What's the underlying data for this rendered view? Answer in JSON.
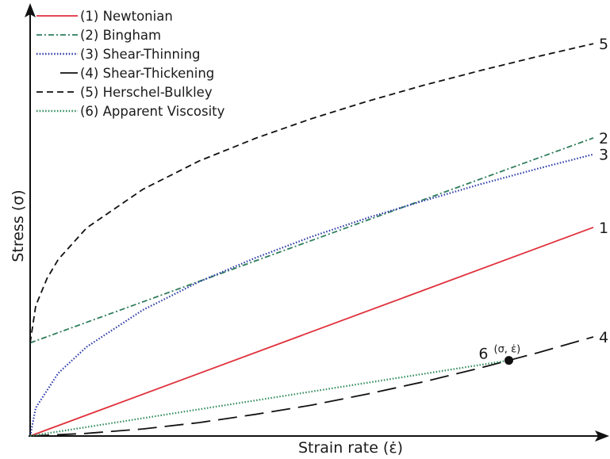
{
  "chart_data": {
    "type": "line",
    "xlabel": "Strain rate (ε̇)",
    "ylabel": "Stress (σ)",
    "xlim": [
      0,
      1
    ],
    "ylim": [
      0,
      1
    ],
    "grid": false,
    "legend_position": "top-left",
    "series": [
      {
        "id": "newtonian",
        "name": "(1) Newtonian",
        "end_label": "1",
        "color": "#e0313b",
        "dash": "solid",
        "x": [
          0,
          1
        ],
        "y": [
          0,
          0.56
        ]
      },
      {
        "id": "bingham",
        "name": "(2) Bingham",
        "end_label": "2",
        "color": "#2e7d5b",
        "dash": "dashdot",
        "x": [
          0,
          1
        ],
        "y": [
          0.25,
          0.8
        ]
      },
      {
        "id": "shear-thinning",
        "name": "(3) Shear-Thinning",
        "end_label": "3",
        "color": "#2b3aa8",
        "dash": "dotted",
        "x": [
          0,
          0.01,
          0.05,
          0.1,
          0.2,
          0.3,
          0.4,
          0.5,
          0.6,
          0.7,
          0.8,
          0.9,
          1.0
        ],
        "y": [
          0,
          0.076,
          0.169,
          0.239,
          0.338,
          0.414,
          0.478,
          0.535,
          0.586,
          0.632,
          0.676,
          0.717,
          0.756
        ]
      },
      {
        "id": "shear-thickening",
        "name": "(4) Shear-Thickening",
        "end_label": "4",
        "color": "#111111",
        "dash": "longdash",
        "x": [
          0,
          0.1,
          0.2,
          0.3,
          0.4,
          0.5,
          0.6,
          0.7,
          0.8,
          0.9,
          1.0
        ],
        "y": [
          0,
          0.007,
          0.019,
          0.036,
          0.058,
          0.083,
          0.113,
          0.146,
          0.183,
          0.223,
          0.266
        ]
      },
      {
        "id": "herschel-bulkley",
        "name": "(5) Herschel-Bulkley",
        "end_label": "5",
        "color": "#111111",
        "dash": "dashed",
        "x": [
          0,
          0.01,
          0.03,
          0.05,
          0.1,
          0.2,
          0.3,
          0.4,
          0.5,
          0.6,
          0.7,
          0.8,
          0.9,
          1.0
        ],
        "y": [
          0.25,
          0.35,
          0.423,
          0.474,
          0.558,
          0.662,
          0.738,
          0.799,
          0.852,
          0.899,
          0.942,
          0.981,
          1.018,
          1.053
        ]
      },
      {
        "id": "apparent-viscosity",
        "name": "(6) Apparent Viscosity",
        "end_label": "6",
        "color": "#2e8a5a",
        "dash": "dotted",
        "x": [
          0,
          0.85
        ],
        "y": [
          0,
          0.203
        ]
      }
    ],
    "annotations": [
      {
        "text": "(σ, ε̇)",
        "x": 0.85,
        "y": 0.203
      }
    ]
  }
}
